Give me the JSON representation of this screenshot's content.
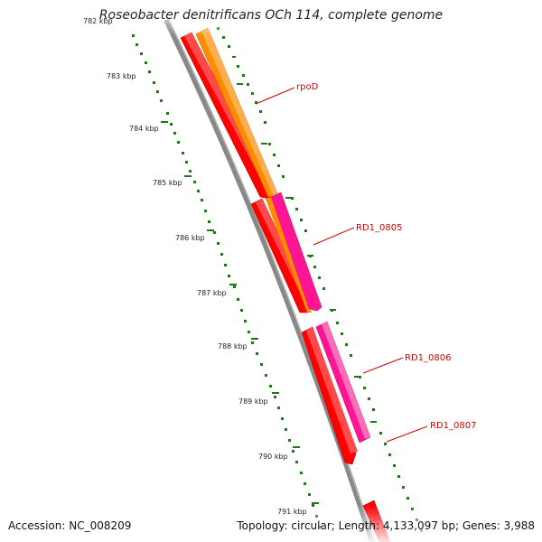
{
  "title": "Roseobacter denitrificans OCh 114, complete genome",
  "accession": "Accession: NC_008209",
  "summary": "Topology: circular; Length: 4,133,097 bp; Genes: 3,988",
  "kbp_labels": [
    "782 kbp",
    "783 kbp",
    "784 kbp",
    "785 kbp",
    "786 kbp",
    "787 kbp",
    "788 kbp",
    "789 kbp",
    "790 kbp",
    "791 kbp"
  ],
  "gene_labels": [
    "rpoD",
    "RD1_0805",
    "RD1_0806",
    "RD1_0807"
  ],
  "colors": {
    "cds": "#ff0000",
    "gene_orange": "#ff8c00",
    "gene_pink": "#ff1493",
    "backbone": "#888888",
    "ticks": "#1a7a1a",
    "label": "#d40000"
  }
}
